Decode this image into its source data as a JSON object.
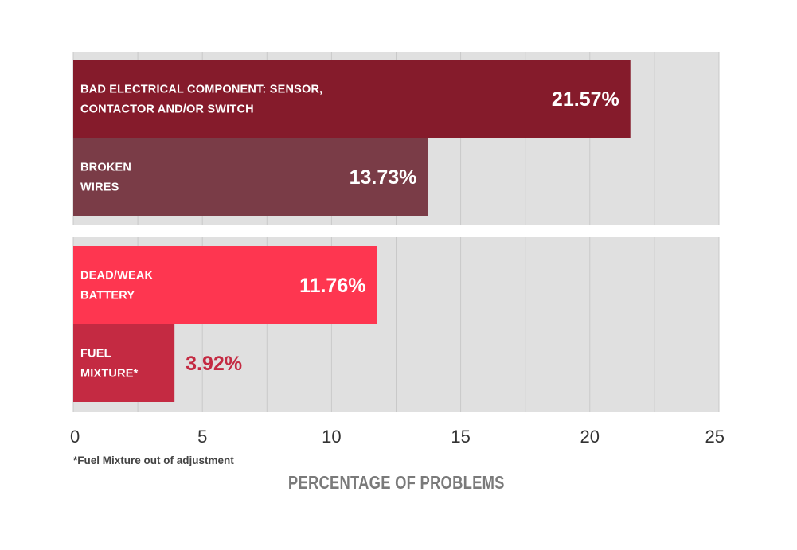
{
  "chart_data": {
    "type": "bar",
    "orientation": "horizontal",
    "xlabel": "PERCENTAGE OF PROBLEMS",
    "xlim": [
      0,
      25
    ],
    "xticks": [
      0,
      5,
      10,
      15,
      20,
      25
    ],
    "grid": true,
    "footnote": "*Fuel Mixture out of adjustment",
    "groups": [
      {
        "bars": [
          {
            "label_lines": [
              "BAD ELECTRICAL COMPONENT: SENSOR,",
              "CONTACTOR AND/OR SWITCH"
            ],
            "value": 21.57,
            "value_label": "21.57%",
            "color": "#851b2b"
          },
          {
            "label_lines": [
              "BROKEN",
              "WIRES"
            ],
            "value": 13.73,
            "value_label": "13.73%",
            "color": "#7a3c47"
          }
        ]
      },
      {
        "bars": [
          {
            "label_lines": [
              "DEAD/WEAK",
              "BATTERY"
            ],
            "value": 11.76,
            "value_label": "11.76%",
            "color": "#fe3650"
          },
          {
            "label_lines": [
              "FUEL",
              "MIXTURE*"
            ],
            "value": 3.92,
            "value_label": "3.92%",
            "color": "#c42a42"
          }
        ]
      }
    ]
  },
  "colors": {
    "panel_bg": "#e0e0e0",
    "grid": "#c9c9c9",
    "value_outside": "#c42a42"
  }
}
